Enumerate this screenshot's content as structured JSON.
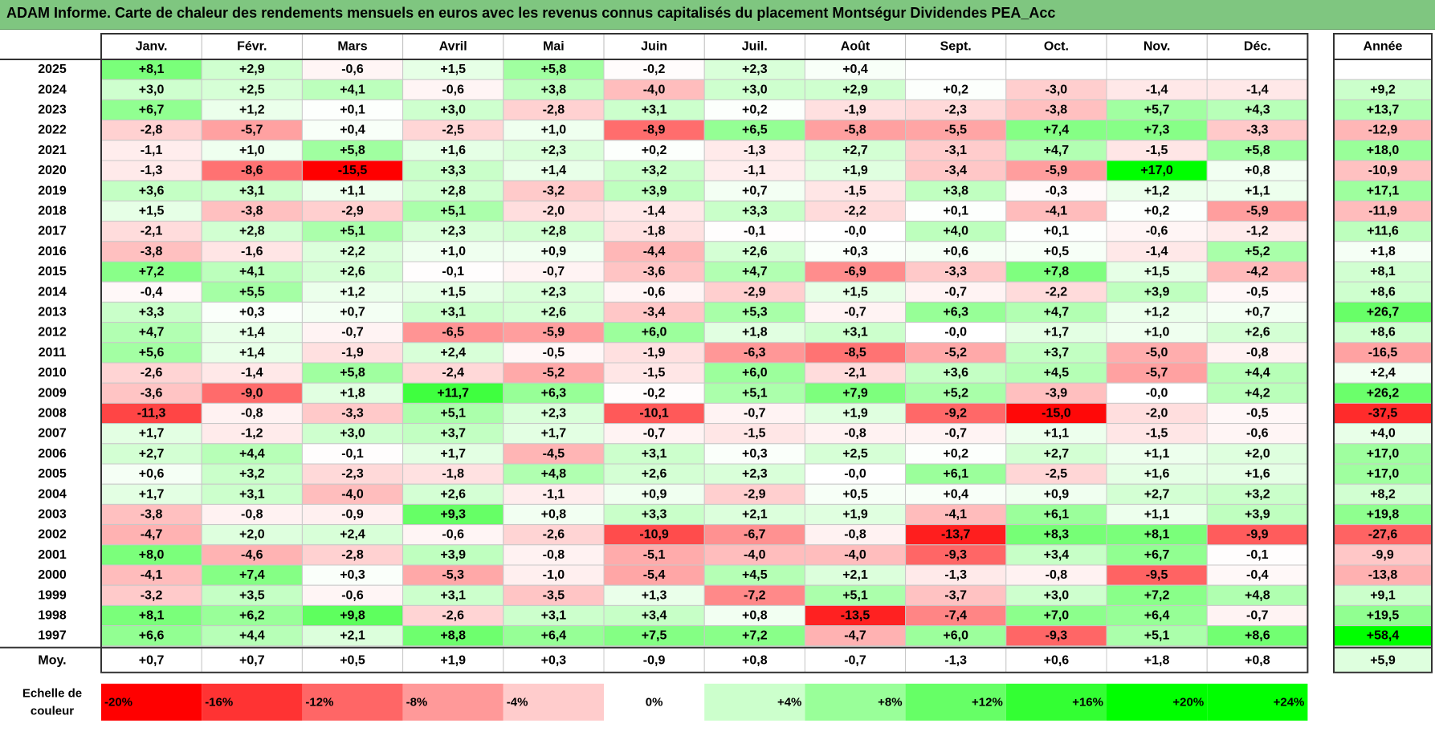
{
  "title": "ADAM Informe. Carte de chaleur des rendements mensuels en euros avec les revenus connus capitalisés du placement Montségur Dividendes PEA_Acc",
  "chart_data": {
    "type": "heatmap",
    "title": "ADAM Informe. Carte de chaleur des rendements mensuels en euros avec les revenus connus capitalisés du placement Montségur Dividendes PEA_Acc",
    "columns": [
      "Janv.",
      "Févr.",
      "Mars",
      "Avril",
      "Mai",
      "Juin",
      "Juil.",
      "Août",
      "Sept.",
      "Oct.",
      "Nov.",
      "Déc."
    ],
    "annual_header": "Année",
    "rows": [
      {
        "year": "2025",
        "values": [
          "+8,1",
          "+2,9",
          "-0,6",
          "+1,5",
          "+5,8",
          "-0,2",
          "+2,3",
          "+0,4",
          "",
          "",
          "",
          ""
        ],
        "annual": ""
      },
      {
        "year": "2024",
        "values": [
          "+3,0",
          "+2,5",
          "+4,1",
          "-0,6",
          "+3,8",
          "-4,0",
          "+3,0",
          "+2,9",
          "+0,2",
          "-3,0",
          "-1,4",
          "-1,4"
        ],
        "annual": "+9,2"
      },
      {
        "year": "2023",
        "values": [
          "+6,7",
          "+1,2",
          "+0,1",
          "+3,0",
          "-2,8",
          "+3,1",
          "+0,2",
          "-1,9",
          "-2,3",
          "-3,8",
          "+5,7",
          "+4,3"
        ],
        "annual": "+13,7"
      },
      {
        "year": "2022",
        "values": [
          "-2,8",
          "-5,7",
          "+0,4",
          "-2,5",
          "+1,0",
          "-8,9",
          "+6,5",
          "-5,8",
          "-5,5",
          "+7,4",
          "+7,3",
          "-3,3"
        ],
        "annual": "-12,9"
      },
      {
        "year": "2021",
        "values": [
          "-1,1",
          "+1,0",
          "+5,8",
          "+1,6",
          "+2,3",
          "+0,2",
          "-1,3",
          "+2,7",
          "-3,1",
          "+4,7",
          "-1,5",
          "+5,8"
        ],
        "annual": "+18,0"
      },
      {
        "year": "2020",
        "values": [
          "-1,3",
          "-8,6",
          "-15,5",
          "+3,3",
          "+1,4",
          "+3,2",
          "-1,1",
          "+1,9",
          "-3,4",
          "-5,9",
          "+17,0",
          "+0,8"
        ],
        "annual": "-10,9"
      },
      {
        "year": "2019",
        "values": [
          "+3,6",
          "+3,1",
          "+1,1",
          "+2,8",
          "-3,2",
          "+3,9",
          "+0,7",
          "-1,5",
          "+3,8",
          "-0,3",
          "+1,2",
          "+1,1"
        ],
        "annual": "+17,1"
      },
      {
        "year": "2018",
        "values": [
          "+1,5",
          "-3,8",
          "-2,9",
          "+5,1",
          "-2,0",
          "-1,4",
          "+3,3",
          "-2,2",
          "+0,1",
          "-4,1",
          "+0,2",
          "-5,9"
        ],
        "annual": "-11,9"
      },
      {
        "year": "2017",
        "values": [
          "-2,1",
          "+2,8",
          "+5,1",
          "+2,3",
          "+2,8",
          "-1,8",
          "-0,1",
          "-0,0",
          "+4,0",
          "+0,1",
          "-0,6",
          "-1,2"
        ],
        "annual": "+11,6"
      },
      {
        "year": "2016",
        "values": [
          "-3,8",
          "-1,6",
          "+2,2",
          "+1,0",
          "+0,9",
          "-4,4",
          "+2,6",
          "+0,3",
          "+0,6",
          "+0,5",
          "-1,4",
          "+5,2"
        ],
        "annual": "+1,8"
      },
      {
        "year": "2015",
        "values": [
          "+7,2",
          "+4,1",
          "+2,6",
          "-0,1",
          "-0,7",
          "-3,6",
          "+4,7",
          "-6,9",
          "-3,3",
          "+7,8",
          "+1,5",
          "-4,2"
        ],
        "annual": "+8,1"
      },
      {
        "year": "2014",
        "values": [
          "-0,4",
          "+5,5",
          "+1,2",
          "+1,5",
          "+2,3",
          "-0,6",
          "-2,9",
          "+1,5",
          "-0,7",
          "-2,2",
          "+3,9",
          "-0,5"
        ],
        "annual": "+8,6"
      },
      {
        "year": "2013",
        "values": [
          "+3,3",
          "+0,3",
          "+0,7",
          "+3,1",
          "+2,6",
          "-3,4",
          "+5,3",
          "-0,7",
          "+6,3",
          "+4,7",
          "+1,2",
          "+0,7"
        ],
        "annual": "+26,7"
      },
      {
        "year": "2012",
        "values": [
          "+4,7",
          "+1,4",
          "-0,7",
          "-6,5",
          "-5,9",
          "+6,0",
          "+1,8",
          "+3,1",
          "-0,0",
          "+1,7",
          "+1,0",
          "+2,6"
        ],
        "annual": "+8,6"
      },
      {
        "year": "2011",
        "values": [
          "+5,6",
          "+1,4",
          "-1,9",
          "+2,4",
          "-0,5",
          "-1,9",
          "-6,3",
          "-8,5",
          "-5,2",
          "+3,7",
          "-5,0",
          "-0,8"
        ],
        "annual": "-16,5"
      },
      {
        "year": "2010",
        "values": [
          "-2,6",
          "-1,4",
          "+5,8",
          "-2,4",
          "-5,2",
          "-1,5",
          "+6,0",
          "-2,1",
          "+3,6",
          "+4,5",
          "-5,7",
          "+4,4"
        ],
        "annual": "+2,4"
      },
      {
        "year": "2009",
        "values": [
          "-3,6",
          "-9,0",
          "+1,8",
          "+11,7",
          "+6,3",
          "-0,2",
          "+5,1",
          "+7,9",
          "+5,2",
          "-3,9",
          "-0,0",
          "+4,2"
        ],
        "annual": "+26,2"
      },
      {
        "year": "2008",
        "values": [
          "-11,3",
          "-0,8",
          "-3,3",
          "+5,1",
          "+2,3",
          "-10,1",
          "-0,7",
          "+1,9",
          "-9,2",
          "-15,0",
          "-2,0",
          "-0,5"
        ],
        "annual": "-37,5"
      },
      {
        "year": "2007",
        "values": [
          "+1,7",
          "-1,2",
          "+3,0",
          "+3,7",
          "+1,7",
          "-0,7",
          "-1,5",
          "-0,8",
          "-0,7",
          "+1,1",
          "-1,5",
          "-0,6"
        ],
        "annual": "+4,0"
      },
      {
        "year": "2006",
        "values": [
          "+2,7",
          "+4,4",
          "-0,1",
          "+1,7",
          "-4,5",
          "+3,1",
          "+0,3",
          "+2,5",
          "+0,2",
          "+2,7",
          "+1,1",
          "+2,0"
        ],
        "annual": "+17,0"
      },
      {
        "year": "2005",
        "values": [
          "+0,6",
          "+3,2",
          "-2,3",
          "-1,8",
          "+4,8",
          "+2,6",
          "+2,3",
          "-0,0",
          "+6,1",
          "-2,5",
          "+1,6",
          "+1,6"
        ],
        "annual": "+17,0"
      },
      {
        "year": "2004",
        "values": [
          "+1,7",
          "+3,1",
          "-4,0",
          "+2,6",
          "-1,1",
          "+0,9",
          "-2,9",
          "+0,5",
          "+0,4",
          "+0,9",
          "+2,7",
          "+3,2"
        ],
        "annual": "+8,2"
      },
      {
        "year": "2003",
        "values": [
          "-3,8",
          "-0,8",
          "-0,9",
          "+9,3",
          "+0,8",
          "+3,3",
          "+2,1",
          "+1,9",
          "-4,1",
          "+6,1",
          "+1,1",
          "+3,9"
        ],
        "annual": "+19,8"
      },
      {
        "year": "2002",
        "values": [
          "-4,7",
          "+2,0",
          "+2,4",
          "-0,6",
          "-2,6",
          "-10,9",
          "-6,7",
          "-0,8",
          "-13,7",
          "+8,3",
          "+8,1",
          "-9,9"
        ],
        "annual": "-27,6"
      },
      {
        "year": "2001",
        "values": [
          "+8,0",
          "-4,6",
          "-2,8",
          "+3,9",
          "-0,8",
          "-5,1",
          "-4,0",
          "-4,0",
          "-9,3",
          "+3,4",
          "+6,7",
          "-0,1"
        ],
        "annual": "-9,9"
      },
      {
        "year": "2000",
        "values": [
          "-4,1",
          "+7,4",
          "+0,3",
          "-5,3",
          "-1,0",
          "-5,4",
          "+4,5",
          "+2,1",
          "-1,3",
          "-0,8",
          "-9,5",
          "-0,4"
        ],
        "annual": "-13,8"
      },
      {
        "year": "1999",
        "values": [
          "-3,2",
          "+3,5",
          "-0,6",
          "+3,1",
          "-3,5",
          "+1,3",
          "-7,2",
          "+5,1",
          "-3,7",
          "+3,0",
          "+7,2",
          "+4,8"
        ],
        "annual": "+9,1"
      },
      {
        "year": "1998",
        "values": [
          "+8,1",
          "+6,2",
          "+9,8",
          "-2,6",
          "+3,1",
          "+3,4",
          "+0,8",
          "-13,5",
          "-7,4",
          "+7,0",
          "+6,4",
          "-0,7"
        ],
        "annual": "+19,5"
      },
      {
        "year": "1997",
        "values": [
          "+6,6",
          "+4,4",
          "+2,1",
          "+8,8",
          "+6,4",
          "+7,5",
          "+7,2",
          "-4,7",
          "+6,0",
          "-9,3",
          "+5,1",
          "+8,6"
        ],
        "annual": "+58,4"
      }
    ],
    "average": {
      "label": "Moy.",
      "values": [
        "+0,7",
        "+0,7",
        "+0,5",
        "+1,9",
        "+0,3",
        "-0,9",
        "+0,8",
        "-0,7",
        "-1,3",
        "+0,6",
        "+1,8",
        "+0,8"
      ],
      "annual": "+5,9"
    },
    "color_scale": {
      "label": [
        "Echelle de",
        "couleur"
      ],
      "stops": [
        "-20%",
        "-16%",
        "-12%",
        "-8%",
        "-4%",
        "0%",
        "+4%",
        "+8%",
        "+12%",
        "+16%",
        "+20%",
        "+24%"
      ],
      "stop_values": [
        -20,
        -16,
        -12,
        -8,
        -4,
        0,
        4,
        8,
        12,
        16,
        20,
        24
      ]
    },
    "colors": {
      "negative": "#ff0000",
      "neutral": "#ffffff",
      "positive": "#00ff00",
      "title_bar": "#7fc680"
    }
  }
}
